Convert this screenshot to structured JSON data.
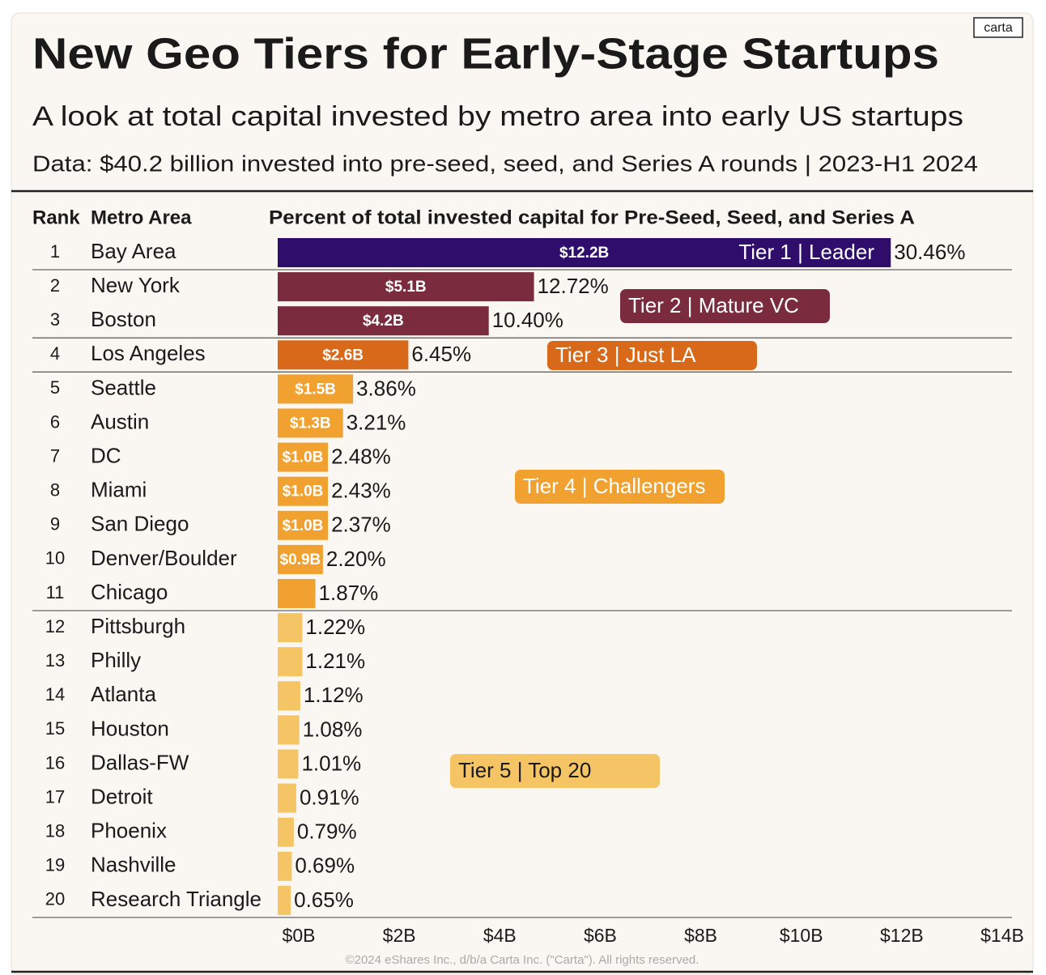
{
  "chart_data": {
    "type": "bar",
    "brand": "carta",
    "title": "New Geo Tiers for Early-Stage Startups",
    "subtitle": "A look at total capital invested by metro area into early US startups",
    "note": "Data: $40.2 billion invested into pre-seed, seed, and Series A rounds | 2023-H1 2024",
    "column_headers": [
      "Rank",
      "Metro Area",
      "Percent of total invested capital for Pre-Seed, Seed, and Series A"
    ],
    "ranks": [
      1,
      2,
      3,
      4,
      5,
      6,
      7,
      8,
      9,
      10,
      11,
      12,
      13,
      14,
      15,
      16,
      17,
      18,
      19,
      20
    ],
    "categories": [
      "Bay Area",
      "New York",
      "Boston",
      "Los Angeles",
      "Seattle",
      "Austin",
      "DC",
      "Miami",
      "San Diego",
      "Denver/Boulder",
      "Chicago",
      "Pittsburgh",
      "Philly",
      "Atlanta",
      "Houston",
      "Dallas-FW",
      "Detroit",
      "Phoenix",
      "Nashville",
      "Research Triangle"
    ],
    "shares": [
      30.46,
      12.72,
      10.4,
      6.45,
      3.86,
      3.21,
      2.48,
      2.43,
      2.37,
      2.2,
      1.87,
      1.22,
      1.21,
      1.12,
      1.08,
      1.01,
      0.91,
      0.79,
      0.69,
      0.65
    ],
    "share_labels": [
      "30.46%",
      "12.72%",
      "10.40%",
      "6.45%",
      "3.86%",
      "3.21%",
      "2.48%",
      "2.43%",
      "2.37%",
      "2.20%",
      "1.87%",
      "1.22%",
      "1.21%",
      "1.12%",
      "1.08%",
      "1.01%",
      "0.91%",
      "0.79%",
      "0.69%",
      "0.65%"
    ],
    "series": [
      {
        "name": "Tier 1 | Leader",
        "color": "#2f0e6b",
        "values": [
          12.2,
          null,
          null,
          null,
          null,
          null,
          null,
          null,
          null,
          null,
          null,
          null,
          null,
          null,
          null,
          null,
          null,
          null,
          null,
          null
        ],
        "value_labels": [
          "$12.2B",
          null,
          null,
          null,
          null,
          null,
          null,
          null,
          null,
          null,
          null,
          null,
          null,
          null,
          null,
          null,
          null,
          null,
          null,
          null
        ]
      },
      {
        "name": "Tier 2 | Mature VC",
        "color": "#7a2c3e",
        "values": [
          null,
          5.1,
          4.2,
          null,
          null,
          null,
          null,
          null,
          null,
          null,
          null,
          null,
          null,
          null,
          null,
          null,
          null,
          null,
          null,
          null
        ],
        "value_labels": [
          null,
          "$5.1B",
          "$4.2B",
          null,
          null,
          null,
          null,
          null,
          null,
          null,
          null,
          null,
          null,
          null,
          null,
          null,
          null,
          null,
          null,
          null
        ]
      },
      {
        "name": "Tier 3 | Just LA",
        "color": "#d8691b",
        "values": [
          null,
          null,
          null,
          2.6,
          null,
          null,
          null,
          null,
          null,
          null,
          null,
          null,
          null,
          null,
          null,
          null,
          null,
          null,
          null,
          null
        ],
        "value_labels": [
          null,
          null,
          null,
          "$2.6B",
          null,
          null,
          null,
          null,
          null,
          null,
          null,
          null,
          null,
          null,
          null,
          null,
          null,
          null,
          null,
          null
        ]
      },
      {
        "name": "Tier 4 | Challengers",
        "color": "#f0a12f",
        "values": [
          null,
          null,
          null,
          null,
          1.5,
          1.3,
          1.0,
          1.0,
          1.0,
          0.9,
          0.75,
          null,
          null,
          null,
          null,
          null,
          null,
          null,
          null,
          null
        ],
        "value_labels": [
          null,
          null,
          null,
          null,
          "$1.5B",
          "$1.3B",
          "$1.0B",
          "$1.0B",
          "$1.0B",
          "$0.9B",
          null,
          null,
          null,
          null,
          null,
          null,
          null,
          null,
          null,
          null
        ]
      },
      {
        "name": "Tier 5 | Top 20",
        "color": "#f5c465",
        "values": [
          null,
          null,
          null,
          null,
          null,
          null,
          null,
          null,
          null,
          null,
          null,
          0.49,
          0.49,
          0.45,
          0.43,
          0.41,
          0.37,
          0.32,
          0.28,
          0.26
        ],
        "value_labels": [
          null,
          null,
          null,
          null,
          null,
          null,
          null,
          null,
          null,
          null,
          null,
          null,
          null,
          null,
          null,
          null,
          null,
          null,
          null,
          null
        ]
      }
    ],
    "xlim": [
      0,
      14
    ],
    "xticks": [
      {
        "value": 0,
        "label": "$0B"
      },
      {
        "value": 2,
        "label": "$2B"
      },
      {
        "value": 4,
        "label": "$4B"
      },
      {
        "value": 6,
        "label": "$6B"
      },
      {
        "value": 8,
        "label": "$8B"
      },
      {
        "value": 10,
        "label": "$10B"
      },
      {
        "value": 12,
        "label": "$12B"
      },
      {
        "value": 14,
        "label": "$14B"
      }
    ],
    "grid": false,
    "footer": "©2024 eShares Inc., d/b/a Carta Inc. (\"Carta\"). All rights reserved."
  }
}
